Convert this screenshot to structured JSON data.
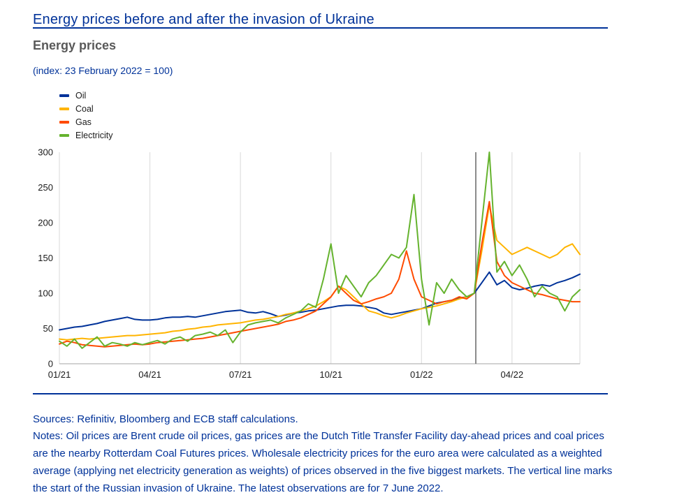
{
  "header": {
    "title": "Energy prices before and after the invasion of Ukraine"
  },
  "footer": {
    "sources": "Sources: Refinitiv, Bloomberg and ECB staff calculations.",
    "notes": "Notes: Oil prices are Brent crude oil prices, gas prices are the Dutch Title Transfer Facility day-ahead prices and coal prices are the nearby Rotterdam Coal Futures prices. Wholesale electricity prices for the euro area were calculated as a weighted average (applying net electricity generation as weights) of prices observed in the five biggest markets. The vertical line marks the start of the Russian invasion of Ukraine. The latest observations are for 7 June 2022."
  },
  "colors": {
    "accent_blue": "#003299",
    "heading_gray": "#595959",
    "vline_gray": "#6e6e6e",
    "grid_gray": "#d9d9d9",
    "axis_gray": "#a6a6a6",
    "tick_text": "#1a1a1a"
  },
  "chart_data": {
    "type": "line",
    "title": "Energy prices",
    "subtitle": "(index: 23 February 2022 = 100)",
    "xlabel": "",
    "ylabel": "",
    "ylim": [
      0,
      300
    ],
    "y_ticks": [
      0,
      50,
      100,
      150,
      200,
      250,
      300
    ],
    "x_ticks": [
      {
        "label": "01/21",
        "m": 0
      },
      {
        "label": "04/21",
        "m": 3
      },
      {
        "label": "07/21",
        "m": 6
      },
      {
        "label": "10/21",
        "m": 9
      },
      {
        "label": "01/22",
        "m": 12
      },
      {
        "label": "04/22",
        "m": 15
      }
    ],
    "x_axis_note": "x values are months since 1 January 2021, sampled every 0.25 month; series end 7 June 2022",
    "x_start": 0,
    "x_step": 0.25,
    "x_max": 17.25,
    "vline_month": 13.8,
    "grid": "vertical-only",
    "legend_position": "top-left",
    "series": [
      {
        "name": "Oil",
        "color": "#003299",
        "values": [
          48,
          50,
          52,
          53,
          55,
          57,
          60,
          62,
          64,
          66,
          63,
          62,
          62,
          63,
          65,
          66,
          66,
          67,
          66,
          68,
          70,
          72,
          74,
          75,
          76,
          73,
          72,
          74,
          71,
          67,
          69,
          72,
          73,
          75,
          76,
          78,
          80,
          82,
          83,
          83,
          82,
          80,
          78,
          72,
          70,
          72,
          74,
          76,
          78,
          82,
          86,
          88,
          90,
          93,
          95,
          100,
          115,
          130,
          112,
          118,
          108,
          105,
          107,
          110,
          112,
          110,
          115,
          118,
          122,
          127
        ]
      },
      {
        "name": "Coal",
        "color": "#ffb400",
        "values": [
          35,
          34,
          35,
          36,
          35,
          36,
          37,
          38,
          39,
          40,
          40,
          41,
          42,
          43,
          44,
          46,
          47,
          49,
          50,
          52,
          53,
          55,
          56,
          57,
          58,
          60,
          62,
          63,
          65,
          67,
          70,
          72,
          75,
          78,
          82,
          88,
          95,
          110,
          105,
          95,
          85,
          75,
          72,
          68,
          65,
          68,
          72,
          75,
          78,
          80,
          82,
          85,
          88,
          92,
          95,
          100,
          160,
          225,
          175,
          165,
          155,
          160,
          165,
          160,
          155,
          150,
          155,
          165,
          170,
          155
        ]
      },
      {
        "name": "Gas",
        "color": "#ff4b00",
        "values": [
          28,
          32,
          30,
          27,
          26,
          25,
          24,
          25,
          26,
          27,
          28,
          27,
          28,
          30,
          31,
          32,
          33,
          34,
          35,
          36,
          38,
          40,
          42,
          44,
          46,
          48,
          50,
          52,
          54,
          56,
          60,
          62,
          65,
          70,
          75,
          85,
          95,
          110,
          100,
          90,
          85,
          88,
          92,
          95,
          100,
          120,
          160,
          120,
          95,
          90,
          85,
          88,
          90,
          95,
          92,
          100,
          170,
          230,
          145,
          125,
          115,
          110,
          105,
          100,
          98,
          95,
          92,
          90,
          88,
          88
        ]
      },
      {
        "name": "Electricity",
        "color": "#65b32e",
        "values": [
          32,
          25,
          35,
          22,
          30,
          38,
          25,
          30,
          28,
          25,
          30,
          27,
          30,
          33,
          28,
          35,
          38,
          32,
          40,
          42,
          45,
          40,
          48,
          30,
          45,
          55,
          58,
          60,
          62,
          58,
          65,
          70,
          75,
          85,
          80,
          120,
          170,
          100,
          125,
          110,
          95,
          115,
          125,
          140,
          155,
          150,
          165,
          240,
          120,
          55,
          115,
          100,
          120,
          105,
          95,
          100,
          200,
          300,
          130,
          145,
          125,
          140,
          120,
          95,
          110,
          100,
          95,
          75,
          95,
          105
        ]
      }
    ]
  }
}
